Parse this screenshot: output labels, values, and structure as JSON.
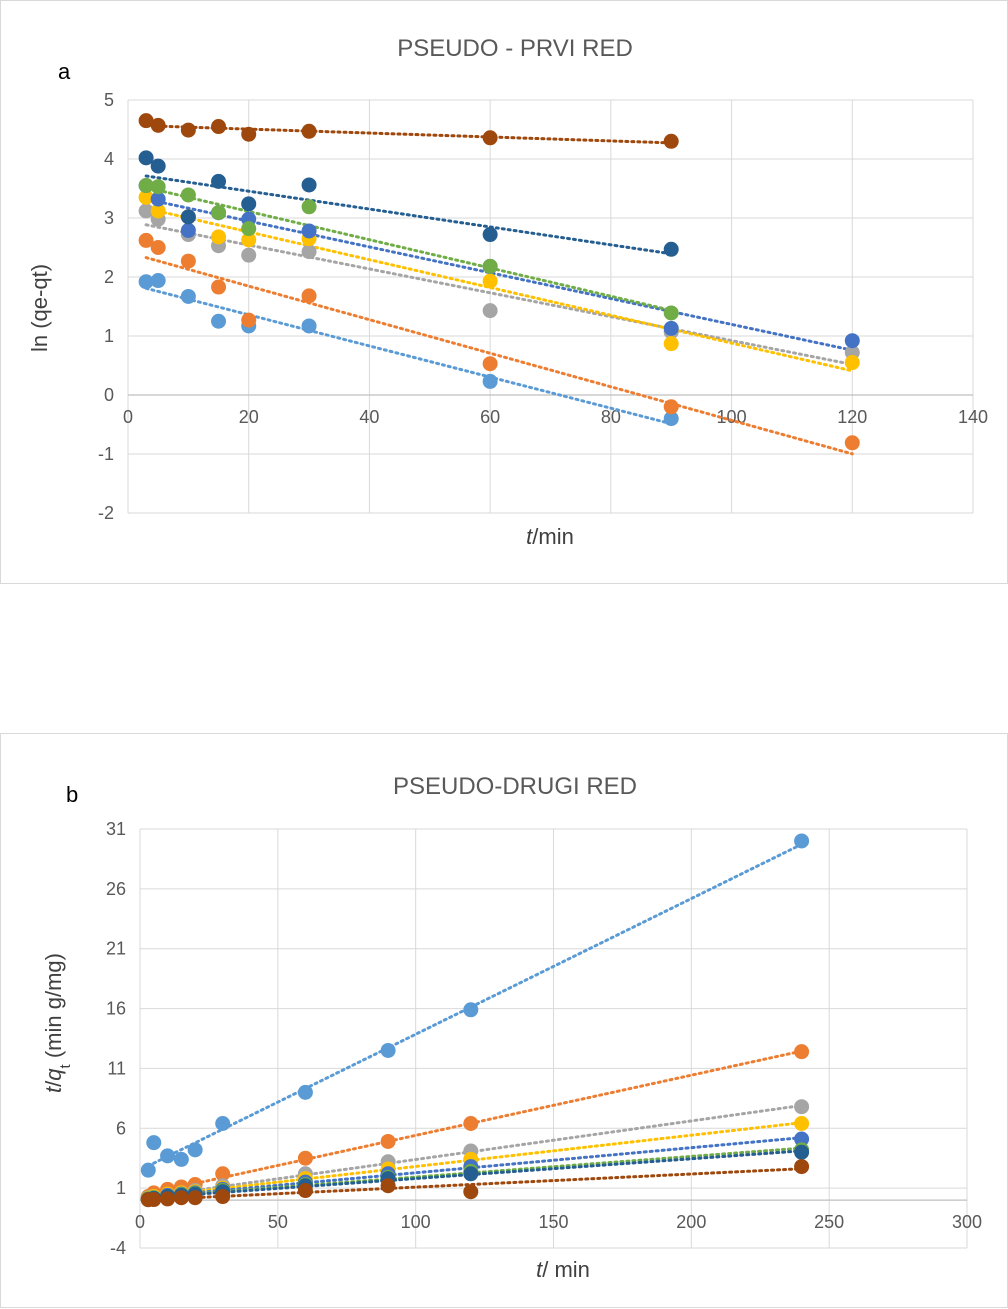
{
  "colors": [
    "#5b9bd5",
    "#ed7d31",
    "#a5a5a5",
    "#ffc000",
    "#4472c4",
    "#70ad47",
    "#255e91",
    "#9e480e"
  ],
  "chart_data": [
    {
      "type": "scatter",
      "panel_label": "a",
      "title": "PSEUDO - PRVI RED",
      "xlabel_italic": "t",
      "xlabel_rest": "/min",
      "ylabel": "ln (qe-qt)",
      "xlim": [
        0,
        140
      ],
      "ylim": [
        -2,
        5
      ],
      "xticks": [
        0,
        20,
        40,
        60,
        80,
        100,
        120,
        140
      ],
      "yticks": [
        -2,
        -1,
        0,
        1,
        2,
        3,
        4,
        5
      ],
      "grid": true,
      "trendlines": "dotted linear fit per series",
      "series": [
        {
          "x": [
            3,
            5,
            10,
            15,
            20,
            30,
            60,
            90
          ],
          "y": [
            1.92,
            1.94,
            1.67,
            1.25,
            1.17,
            1.17,
            0.23,
            -0.4
          ]
        },
        {
          "x": [
            3,
            5,
            10,
            15,
            20,
            30,
            60,
            90,
            120
          ],
          "y": [
            2.62,
            2.5,
            2.27,
            1.83,
            1.27,
            1.68,
            0.53,
            -0.2,
            -0.81
          ]
        },
        {
          "x": [
            3,
            5,
            10,
            15,
            20,
            30,
            60,
            90,
            120
          ],
          "y": [
            3.12,
            2.98,
            2.72,
            2.53,
            2.37,
            2.43,
            1.43,
            1.07,
            0.72
          ]
        },
        {
          "x": [
            3,
            5,
            10,
            15,
            20,
            30,
            60,
            90,
            120
          ],
          "y": [
            3.35,
            3.12,
            3.02,
            2.68,
            2.63,
            2.65,
            1.93,
            0.87,
            0.55
          ]
        },
        {
          "x": [
            3,
            5,
            10,
            15,
            20,
            30,
            60,
            90,
            120
          ],
          "y": [
            3.55,
            3.32,
            2.79,
            3.09,
            2.98,
            2.78,
            2.18,
            1.13,
            0.92
          ]
        },
        {
          "x": [
            3,
            5,
            10,
            15,
            20,
            30,
            60,
            90
          ],
          "y": [
            3.55,
            3.53,
            3.39,
            3.09,
            2.82,
            3.19,
            2.18,
            1.39
          ]
        },
        {
          "x": [
            3,
            5,
            10,
            15,
            20,
            30,
            60,
            90
          ],
          "y": [
            4.02,
            3.88,
            3.02,
            3.62,
            3.24,
            3.56,
            2.72,
            2.47
          ]
        },
        {
          "x": [
            3,
            5,
            10,
            15,
            20,
            30,
            60,
            90
          ],
          "y": [
            4.65,
            4.57,
            4.49,
            4.55,
            4.42,
            4.47,
            4.36,
            4.3
          ]
        }
      ]
    },
    {
      "type": "scatter",
      "panel_label": "b",
      "title": "PSEUDO-DRUGI RED",
      "xlabel_italic": "t",
      "xlabel_rest": "/ min",
      "ylabel_italic_t": "t",
      "ylabel_slash": "/",
      "ylabel_italic_q": "q",
      "ylabel_sub": "t",
      "ylabel_rest": " (min g/mg)",
      "xlim": [
        0,
        300
      ],
      "ylim": [
        -4,
        31
      ],
      "xticks": [
        0,
        50,
        100,
        150,
        200,
        250,
        300
      ],
      "yticks": [
        -4,
        1,
        6,
        11,
        16,
        21,
        26,
        31
      ],
      "grid": true,
      "trendlines": "dotted linear fit per series",
      "series": [
        {
          "x": [
            3,
            5,
            10,
            15,
            20,
            30,
            60,
            90,
            120,
            240
          ],
          "y": [
            2.5,
            4.8,
            3.7,
            3.4,
            4.2,
            6.4,
            9.0,
            12.5,
            15.9,
            30.0
          ]
        },
        {
          "x": [
            3,
            5,
            10,
            15,
            20,
            30,
            60,
            90,
            120,
            240
          ],
          "y": [
            0.3,
            0.6,
            0.9,
            1.1,
            1.3,
            2.2,
            3.5,
            4.9,
            6.4,
            12.4
          ]
        },
        {
          "x": [
            3,
            5,
            10,
            15,
            20,
            30,
            60,
            90,
            120,
            240
          ],
          "y": [
            0.2,
            0.3,
            0.4,
            0.6,
            0.8,
            1.2,
            2.2,
            3.2,
            4.1,
            7.8
          ]
        },
        {
          "x": [
            3,
            5,
            10,
            15,
            20,
            30,
            60,
            90,
            120,
            240
          ],
          "y": [
            0.15,
            0.3,
            0.5,
            0.6,
            0.7,
            1.0,
            1.8,
            2.6,
            3.4,
            6.4
          ]
        },
        {
          "x": [
            3,
            5,
            10,
            15,
            20,
            30,
            60,
            90,
            120,
            240
          ],
          "y": [
            0.1,
            0.2,
            0.4,
            0.5,
            0.6,
            0.9,
            1.5,
            2.2,
            2.8,
            5.1
          ]
        },
        {
          "x": [
            3,
            5,
            10,
            15,
            20,
            30,
            60,
            90,
            120,
            240
          ],
          "y": [
            0.1,
            0.2,
            0.3,
            0.45,
            0.55,
            0.8,
            1.3,
            1.9,
            2.4,
            4.2
          ]
        },
        {
          "x": [
            3,
            5,
            10,
            15,
            20,
            30,
            60,
            90,
            120,
            240
          ],
          "y": [
            0.05,
            0.15,
            0.3,
            0.4,
            0.5,
            0.7,
            1.2,
            1.8,
            2.2,
            4.0
          ]
        },
        {
          "x": [
            3,
            5,
            10,
            15,
            20,
            30,
            60,
            90,
            120,
            240
          ],
          "y": [
            0.03,
            0.05,
            0.1,
            0.2,
            0.2,
            0.3,
            0.8,
            1.2,
            0.7,
            2.8
          ]
        }
      ]
    }
  ]
}
